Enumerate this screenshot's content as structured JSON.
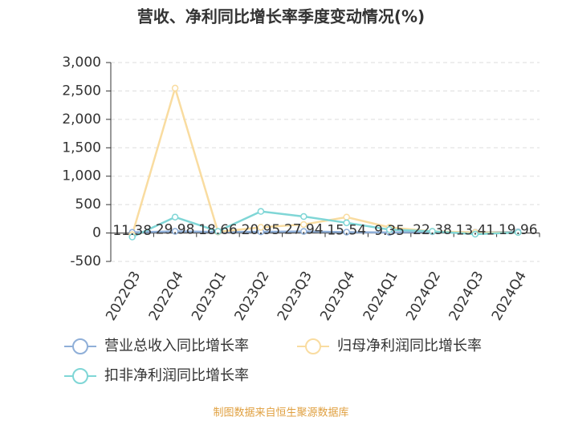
{
  "chart_data": {
    "type": "line",
    "title": "营收、净利同比增长率季度变动情况(%)",
    "categories": [
      "2022Q3",
      "2022Q4",
      "2023Q1",
      "2023Q2",
      "2023Q3",
      "2023Q4",
      "2024Q1",
      "2024Q2",
      "2024Q3",
      "2024Q4"
    ],
    "series": [
      {
        "name": "营业总收入同比增长率",
        "color": "#8fafd8",
        "values": [
          11.38,
          29.98,
          18.66,
          20.95,
          27.94,
          15.54,
          9.35,
          22.38,
          13.41,
          19.96
        ]
      },
      {
        "name": "归母净利润同比增长率",
        "color": "#f9dca0",
        "values": [
          -30,
          2550,
          20,
          100,
          150,
          280,
          100,
          30,
          10,
          10
        ]
      },
      {
        "name": "扣非净利润同比增长率",
        "color": "#7fd6d6",
        "values": [
          -70,
          280,
          30,
          380,
          290,
          180,
          60,
          30,
          -20,
          10
        ]
      }
    ],
    "ylim": [
      -500,
      3000
    ],
    "yticks": [
      -500,
      0,
      500,
      {
        "value": 1000,
        "label": "1,000"
      },
      {
        "value": 1500,
        "label": "1,500"
      },
      {
        "value": 2000,
        "label": "2,000"
      },
      {
        "value": 2500,
        "label": "2,500"
      },
      {
        "value": 3000,
        "label": "3,000"
      }
    ],
    "grid": true,
    "footer": "制图数据来自恒生聚源数据库"
  }
}
